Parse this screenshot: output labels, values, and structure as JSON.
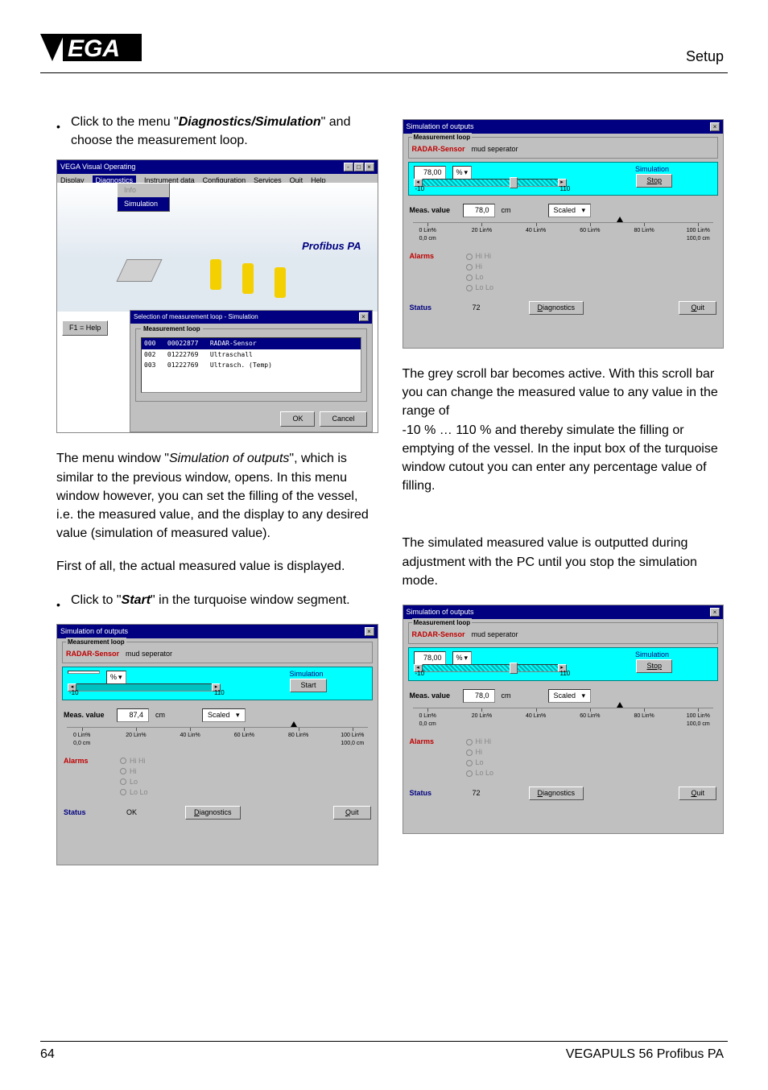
{
  "header": {
    "section": "Setup"
  },
  "left": {
    "bullet1_a": "Click to the menu \"",
    "bullet1_b": "Diagnostics/Simulation",
    "bullet1_c": "\" and choose the measurement loop.",
    "para1_a": "The menu window \"",
    "para1_b": "Simulation of outputs",
    "para1_c": "\", which is similar to the previous window, opens. In this menu window however, you can set the filling of the vessel, i.e. the measured value, and the display to any desired value (simulation of measured value).",
    "para2": "First of all, the actual measured value is displayed.",
    "bullet2_a": "Click to \"",
    "bullet2_b": "Start",
    "bullet2_c": "\" in the turquoise window segment."
  },
  "right": {
    "para1": "The grey scroll bar becomes active. With this scroll bar you can change the measured value to any value in the range of",
    "para1b": "-10 % … 110 % and thereby simulate the filling or emptying of the vessel. In the input box of the turquoise window cutout you can enter any percentage value of filling.",
    "para2": "The simulated measured value is outputted during adjustment with the PC until you stop the simulation mode."
  },
  "shot1": {
    "title": "VEGA Visual Operating",
    "menu": [
      "Display",
      "Diagnostics",
      "Instrument data",
      "Configuration",
      "Services",
      "Quit",
      "Help"
    ],
    "dd": [
      "Info",
      "Simulation"
    ],
    "pblabel": "Profibus PA",
    "help": "F1 = Help",
    "dlg_title": "Selection of measurement loop - Simulation",
    "grp_label": "Measurement loop",
    "rows": [
      "000   00022877   RADAR-Sensor",
      "002   01222769   Ultraschall",
      "003   01222769   Ultrasch. (Temp)"
    ],
    "ok": "OK",
    "cancel": "Cancel"
  },
  "sim": {
    "title": "Simulation of outputs",
    "mloop": "Measurement loop",
    "sensor": "RADAR-Sensor",
    "desc": "mud seperator",
    "unit": "%",
    "simlabel": "Simulation",
    "start": "Start",
    "stop": "Stop",
    "range_lo": "-10",
    "range_hi": "110",
    "meas_label": "Meas. value",
    "cm": "cm",
    "scaled": "Scaled",
    "alarms": "Alarms",
    "alist": [
      "Hi Hi",
      "Hi",
      "Lo",
      "Lo Lo"
    ],
    "status": "Status",
    "diag": "Diagnostics",
    "quit": "Quit",
    "axis": [
      "0 Lin%\n0,0 cm",
      "20 Lin%",
      "40 Lin%",
      "60 Lin%",
      "80 Lin%",
      "100 Lin%\n100,0 cm"
    ]
  },
  "simA": {
    "val": "",
    "mv": "87,4",
    "status_val": "OK",
    "btn": "Start",
    "thumb_pct": 77
  },
  "simB": {
    "val": "78,00",
    "mv": "78,0",
    "status_val": "72",
    "btn": "Stop",
    "thumb_pct": 70
  },
  "simC": {
    "val": "78,00",
    "mv": "78,0",
    "status_val": "72",
    "btn": "Stop",
    "thumb_pct": 70
  },
  "footer": {
    "page": "64",
    "doc": "VEGAPULS 56 Profibus PA"
  }
}
